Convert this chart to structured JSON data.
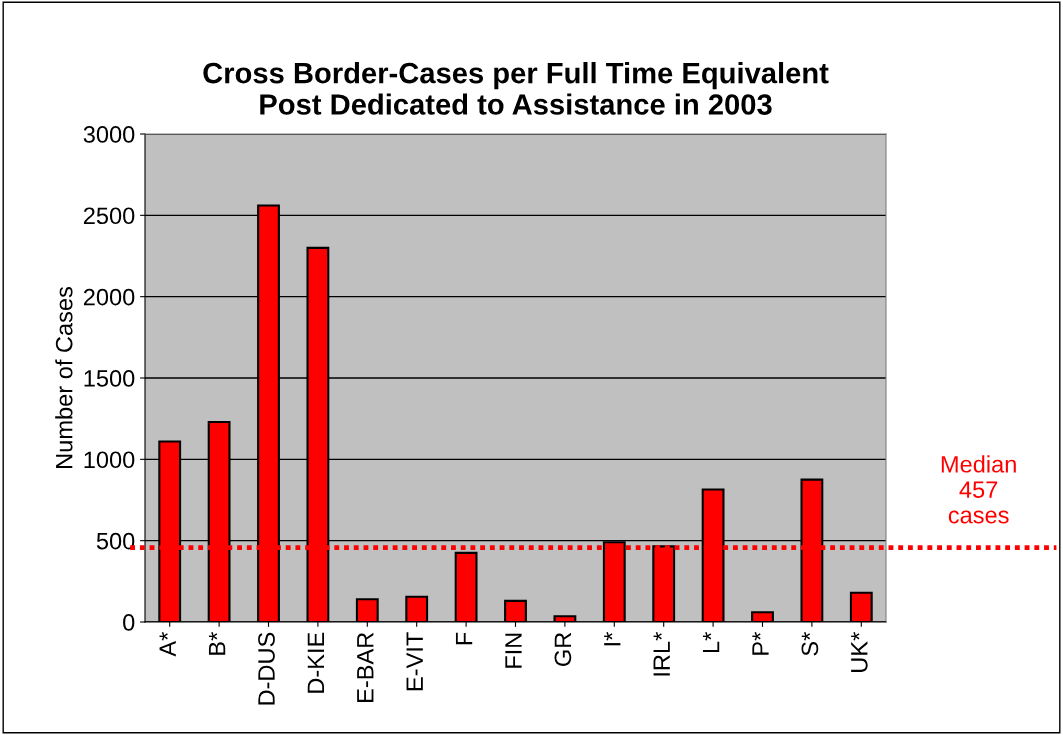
{
  "chart_data": {
    "type": "bar",
    "title": "Cross Border-Cases per Full Time Equivalent\nPost Dedicated to Assistance in 2003",
    "ylabel": "Number of Cases",
    "categories": [
      "A*",
      "B*",
      "D-DUS",
      "D-KIE",
      "E-BAR",
      "E-VIT",
      "F",
      "FIN",
      "GR",
      "I*",
      "IRL*",
      "L*",
      "P*",
      "S*",
      "UK*"
    ],
    "values": [
      1110,
      1230,
      2560,
      2300,
      140,
      155,
      425,
      130,
      35,
      490,
      465,
      815,
      60,
      875,
      180
    ],
    "color": "#ff0000",
    "ylim": [
      0,
      3000
    ],
    "yticks": [
      0,
      500,
      1000,
      1500,
      2000,
      2500,
      3000
    ],
    "grid": "y",
    "ref_lines": [
      {
        "axis": "y",
        "value": 457,
        "label": "Median\n457\ncases",
        "color": "#ff0000",
        "line_style": "dotted"
      }
    ]
  }
}
